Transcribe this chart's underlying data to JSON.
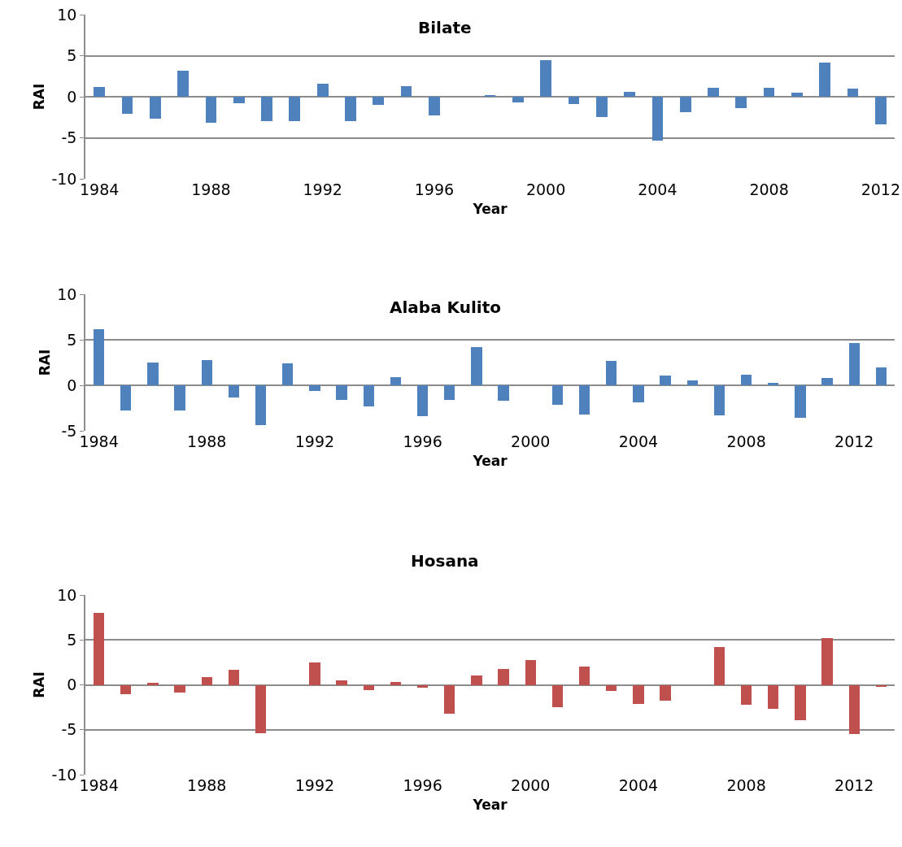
{
  "chart_data": [
    {
      "type": "bar",
      "title": "Bilate",
      "xlabel": "Year",
      "ylabel": "RAI",
      "x": [
        1984,
        1985,
        1986,
        1987,
        1988,
        1989,
        1990,
        1991,
        1992,
        1993,
        1994,
        1995,
        1996,
        1997,
        1998,
        1999,
        2000,
        2001,
        2002,
        2003,
        2004,
        2005,
        2006,
        2007,
        2008,
        2009,
        2010,
        2011,
        2012
      ],
      "values": [
        1.2,
        -2.1,
        -2.7,
        3.2,
        -3.2,
        -0.8,
        -3.0,
        -3.0,
        1.6,
        -3.0,
        -1.0,
        1.3,
        -2.3,
        0,
        0.1,
        -0.7,
        4.5,
        -0.9,
        -2.5,
        0.6,
        -5.3,
        -1.9,
        1.1,
        -1.4,
        1.1,
        0.5,
        4.2,
        1.0,
        -3.4
      ],
      "color": "#4f81bd",
      "xlim": [
        1983.5,
        2012.5
      ],
      "xticks": [
        1984,
        1988,
        1992,
        1996,
        2000,
        2004,
        2008,
        2012
      ],
      "ylim": [
        -10,
        10
      ],
      "yticks": [
        -10,
        -5,
        0,
        5,
        10
      ],
      "grid": "y"
    },
    {
      "type": "bar",
      "title": "Alaba Kulito",
      "xlabel": "Year",
      "ylabel": "RAI",
      "x": [
        1984,
        1985,
        1986,
        1987,
        1988,
        1989,
        1990,
        1991,
        1992,
        1993,
        1994,
        1995,
        1996,
        1997,
        1998,
        1999,
        2000,
        2001,
        2002,
        2003,
        2004,
        2005,
        2006,
        2007,
        2008,
        2009,
        2010,
        2011,
        2012,
        2013
      ],
      "values": [
        6.2,
        -2.8,
        2.5,
        -2.8,
        2.8,
        -1.3,
        -4.4,
        2.4,
        -0.6,
        -1.6,
        -2.3,
        0.9,
        -3.4,
        -1.6,
        4.2,
        -1.7,
        0,
        -2.1,
        -3.2,
        2.7,
        -1.9,
        1.1,
        0.5,
        -3.3,
        1.2,
        0.3,
        -3.6,
        0.8,
        4.6,
        2.0
      ],
      "color": "#4f81bd",
      "xlim": [
        1983.5,
        2013.5
      ],
      "xticks": [
        1984,
        1988,
        1992,
        1996,
        2000,
        2004,
        2008,
        2012
      ],
      "ylim": [
        -5,
        10
      ],
      "yticks": [
        -5,
        0,
        5,
        10
      ],
      "grid": "y"
    },
    {
      "type": "bar",
      "title": "Hosana",
      "xlabel": "Year",
      "ylabel": "RAI",
      "x": [
        1984,
        1985,
        1986,
        1987,
        1988,
        1989,
        1990,
        1991,
        1992,
        1993,
        1994,
        1995,
        1996,
        1997,
        1998,
        1999,
        2000,
        2001,
        2002,
        2003,
        2004,
        2005,
        2006,
        2007,
        2008,
        2009,
        2010,
        2011,
        2012,
        2013
      ],
      "values": [
        8.0,
        -1.0,
        0.2,
        -0.9,
        0.9,
        1.7,
        -5.4,
        0,
        2.5,
        0.5,
        -0.6,
        0.3,
        -0.3,
        -3.2,
        1.0,
        1.8,
        2.8,
        -2.5,
        2.0,
        -0.7,
        -2.1,
        -1.8,
        0,
        4.2,
        -2.2,
        -2.7,
        -3.9,
        5.2,
        -5.5,
        -0.2
      ],
      "color": "#c0504d",
      "xlim": [
        1983.5,
        2013.5
      ],
      "xticks": [
        1984,
        1988,
        1992,
        1996,
        2000,
        2004,
        2008,
        2012
      ],
      "ylim": [
        -10,
        10
      ],
      "yticks": [
        -10,
        -5,
        0,
        5,
        10
      ],
      "grid": "y"
    }
  ]
}
